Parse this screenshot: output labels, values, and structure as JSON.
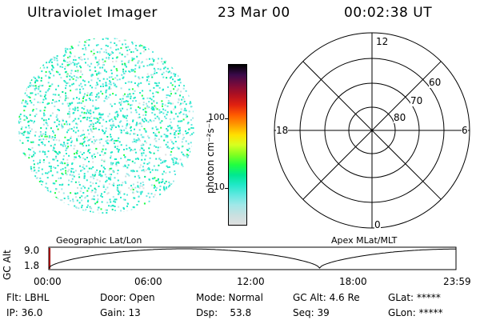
{
  "header": {
    "title": "Ultraviolet Imager",
    "date": "23 Mar 00",
    "time": "00:02:38 UT"
  },
  "colorbar": {
    "unit_label": "photon cm⁻²s⁻¹",
    "ticks": [
      "100",
      "10"
    ],
    "colors": [
      "#000000",
      "#3a0a4a",
      "#7a0a3a",
      "#b01020",
      "#e02010",
      "#ff5a00",
      "#ff9a00",
      "#ffe000",
      "#d8ff20",
      "#80ff20",
      "#20ff40",
      "#00e890",
      "#20e8c8",
      "#60e8e0",
      "#a0e8e8",
      "#c8e0e0",
      "#e0e0e0"
    ]
  },
  "polar": {
    "mlt_labels": [
      "12",
      "18",
      "6",
      "0"
    ],
    "lat_labels": [
      "60",
      "70",
      "80"
    ]
  },
  "panel_labels": {
    "left": "Geographic Lat/Lon",
    "right": "Apex MLat/MLT"
  },
  "altitude_plot": {
    "ylabel": "GC Alt",
    "ymax": "9.0",
    "ymin": "1.8",
    "x_ticks": [
      "00:00",
      "06:00",
      "12:00",
      "18:00",
      "23:59"
    ]
  },
  "status": {
    "flt": "Flt: LBHL",
    "ip": "IP: 36.0",
    "door": "Door: Open",
    "gain": "Gain: 13",
    "mode": "Mode: Normal",
    "dsp": "Dsp:    53.8",
    "gc_alt": "GC Alt: 4.6 Re",
    "seq": "Seq: 39",
    "glat": "GLat: *****",
    "glon": "GLon: *****"
  }
}
